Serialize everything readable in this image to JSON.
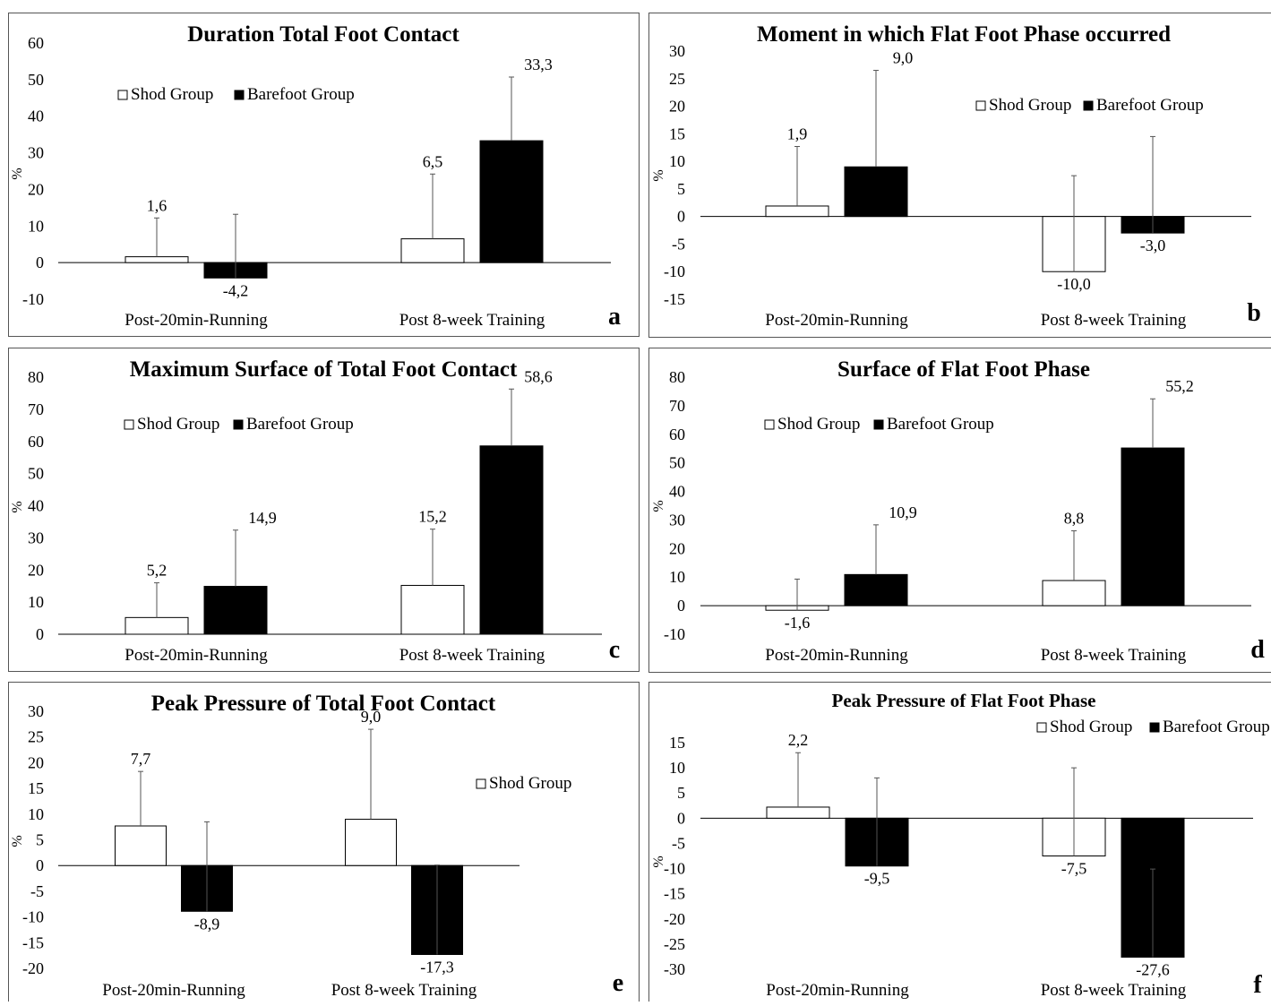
{
  "figure": {
    "background": "#ffffff",
    "frame_color": "#555555",
    "bar_stroke": "#000000",
    "whisker_color": "#555555"
  },
  "chart_data": [
    {
      "type": "bar",
      "letter": "a",
      "title": "Duration Total Foot Contact",
      "ylabel": "%",
      "ylim": [
        -10,
        60
      ],
      "yticks": [
        -10,
        0,
        10,
        20,
        30,
        40,
        50,
        60
      ],
      "categories": [
        "Post-20min-Running",
        "Post 8-week Training"
      ],
      "series": [
        {
          "name": "Shod Group",
          "color": "#ffffff",
          "values": [
            1.6,
            6.5
          ],
          "labels": [
            "1,6",
            "6,5"
          ],
          "err": [
            10.6,
            17.7
          ]
        },
        {
          "name": "Barefoot Group",
          "color": "#000000",
          "values": [
            -4.2,
            33.3
          ],
          "labels": [
            "-4,2",
            "33,3"
          ],
          "err": [
            17.4,
            17.4
          ]
        }
      ],
      "legend": [
        "Shod Group",
        "Barefoot Group"
      ],
      "legend_position": "top-left"
    },
    {
      "type": "bar",
      "letter": "b",
      "title": "Moment in which Flat Foot Phase occurred",
      "ylabel": "%",
      "ylim": [
        -15,
        30
      ],
      "yticks": [
        -15,
        -10,
        -5,
        0,
        5,
        10,
        15,
        20,
        25,
        30
      ],
      "categories": [
        "Post-20min-Running",
        "Post 8-week Training"
      ],
      "series": [
        {
          "name": "Shod Group",
          "color": "#ffffff",
          "values": [
            1.9,
            -10.0
          ],
          "labels": [
            "1,9",
            "-10,0"
          ],
          "err": [
            10.8,
            17.4
          ]
        },
        {
          "name": "Barefoot Group",
          "color": "#000000",
          "values": [
            9.0,
            -3.0
          ],
          "labels": [
            "9,0",
            "-3,0"
          ],
          "err": [
            17.5,
            17.5
          ]
        }
      ],
      "legend": [
        "Shod Group",
        "Barefoot Group"
      ],
      "legend_position": "top-right"
    },
    {
      "type": "bar",
      "letter": "c",
      "title": "Maximum Surface of Total Foot Contact",
      "ylabel": "%",
      "ylim": [
        0,
        80
      ],
      "yticks": [
        0,
        10,
        20,
        30,
        40,
        50,
        60,
        70,
        80
      ],
      "categories": [
        "Post-20min-Running",
        "Post 8-week Training"
      ],
      "series": [
        {
          "name": "Shod Group",
          "color": "#ffffff",
          "values": [
            5.2,
            15.2
          ],
          "labels": [
            "5,2",
            "15,2"
          ],
          "err": [
            10.8,
            17.5
          ]
        },
        {
          "name": "Barefoot Group",
          "color": "#000000",
          "values": [
            14.9,
            58.6
          ],
          "labels": [
            "14,9",
            "58,6"
          ],
          "err": [
            17.5,
            17.7
          ]
        }
      ],
      "legend": [
        "Shod Group",
        "Barefoot Group"
      ],
      "legend_position": "top-left"
    },
    {
      "type": "bar",
      "letter": "d",
      "title": "Surface of Flat Foot Phase",
      "ylabel": "%",
      "ylim": [
        -10,
        80
      ],
      "yticks": [
        -10,
        0,
        10,
        20,
        30,
        40,
        50,
        60,
        70,
        80
      ],
      "categories": [
        "Post-20min-Running",
        "Post 8-week Training"
      ],
      "series": [
        {
          "name": "Shod Group",
          "color": "#ffffff",
          "values": [
            -1.6,
            8.8
          ],
          "labels": [
            "-1,6",
            "8,8"
          ],
          "err": [
            10.9,
            17.4
          ]
        },
        {
          "name": "Barefoot Group",
          "color": "#000000",
          "values": [
            10.9,
            55.2
          ],
          "labels": [
            "10,9",
            "55,2"
          ],
          "err": [
            17.4,
            17.2
          ]
        }
      ],
      "legend": [
        "Shod Group",
        "Barefoot Group"
      ],
      "legend_position": "top-left"
    },
    {
      "type": "bar",
      "letter": "e",
      "title": "Peak Pressure of Total Foot Contact",
      "ylabel": "%",
      "ylim": [
        -20,
        30
      ],
      "yticks": [
        -20,
        -15,
        -10,
        -5,
        0,
        5,
        10,
        15,
        20,
        25,
        30
      ],
      "categories": [
        "Post-20min-Running",
        "Post 8-week Training"
      ],
      "series": [
        {
          "name": "Shod Group",
          "color": "#ffffff",
          "values": [
            7.7,
            9.0
          ],
          "labels": [
            "7,7",
            "9,0"
          ],
          "err": [
            10.6,
            17.5
          ]
        },
        {
          "name": "Barefoot Group",
          "color": "#000000",
          "values": [
            -8.9,
            -17.3
          ],
          "labels": [
            "-8,9",
            "-17,3"
          ],
          "err": [
            17.4,
            17.4
          ]
        }
      ],
      "legend": [
        "Shod Group"
      ],
      "legend_position": "right"
    },
    {
      "type": "bar",
      "letter": "f",
      "title": "Peak Pressure of Flat Foot Phase",
      "ylabel": "%",
      "ylim": [
        -30,
        15
      ],
      "yticks": [
        -30,
        -25,
        -20,
        -15,
        -10,
        -5,
        0,
        5,
        10,
        15
      ],
      "categories": [
        "Post-20min-Running",
        "Post 8-week Training"
      ],
      "series": [
        {
          "name": "Shod Group",
          "color": "#ffffff",
          "values": [
            2.2,
            -7.5
          ],
          "labels": [
            "2,2",
            "-7,5"
          ],
          "err": [
            10.8,
            17.5
          ]
        },
        {
          "name": "Barefoot Group",
          "color": "#000000",
          "values": [
            -9.5,
            -27.6
          ],
          "labels": [
            "-9,5",
            "-27,6"
          ],
          "err": [
            17.5,
            17.5
          ]
        }
      ],
      "legend": [
        "Shod Group",
        "Barefoot Group"
      ],
      "legend_position": "top-right"
    }
  ]
}
